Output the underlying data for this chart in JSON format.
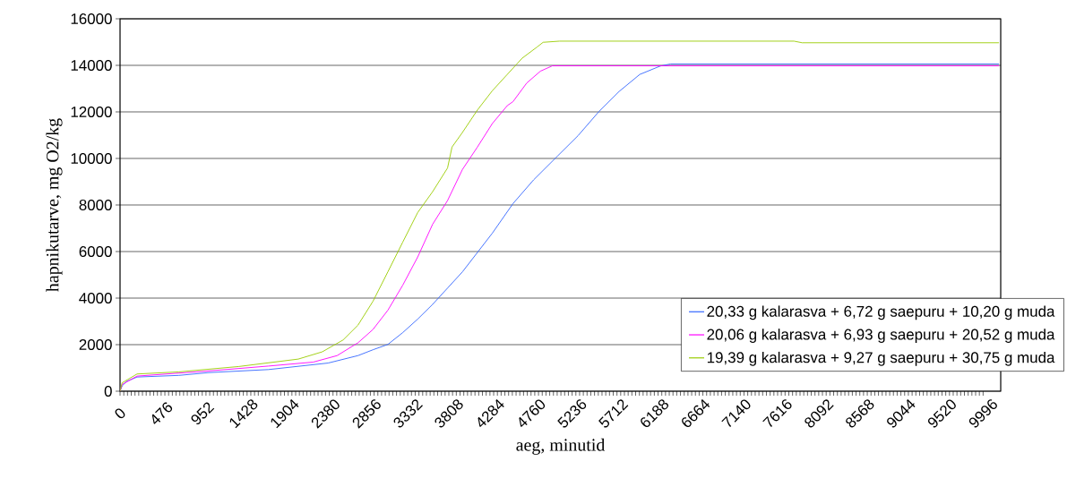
{
  "chart_data": {
    "type": "line",
    "xlabel": "aeg, minutid",
    "ylabel": "hapnikutarve, mg O2/kg",
    "xlim": [
      0,
      10200
    ],
    "xticks": [
      0,
      476,
      952,
      1428,
      1904,
      2380,
      2856,
      3332,
      3808,
      4284,
      4760,
      5236,
      5712,
      6188,
      6664,
      7140,
      7616,
      8092,
      8568,
      9044,
      9520,
      9996
    ],
    "ylim": [
      0,
      16000
    ],
    "yticks": [
      0,
      2000,
      4000,
      6000,
      8000,
      10000,
      12000,
      14000,
      16000
    ],
    "grid": "y",
    "legend": "bottom right",
    "series": [
      {
        "name": "20,33 g kalarasva + 6,72 g saepuru + 10,20 g muda",
        "color": "#3366ff",
        "x": [
          0,
          24,
          76,
          197,
          681,
          1027,
          1719,
          2410,
          2756,
          2929,
          3102,
          3275,
          3448,
          3620,
          3793,
          3966,
          4139,
          4312,
          4551,
          4790,
          5066,
          5305,
          5543,
          5781,
          6020,
          6257,
          6376,
          8000,
          10180
        ],
        "values": [
          0,
          230,
          420,
          610,
          680,
          800,
          930,
          1210,
          1530,
          1780,
          2010,
          2520,
          3100,
          3730,
          4430,
          5130,
          5960,
          6790,
          8060,
          9080,
          10100,
          10980,
          12000,
          12880,
          13610,
          13970,
          14060,
          14060,
          14060
        ]
      },
      {
        "name": "20,06 g kalarasva + 6,93 g saepuru + 20,52 g muda",
        "color": "#ff00ff",
        "x": [
          0,
          24,
          197,
          1027,
          1719,
          2237,
          2514,
          2756,
          2929,
          3102,
          3275,
          3448,
          3620,
          3793,
          3966,
          4139,
          4312,
          4485,
          4551,
          4710,
          4869,
          5007,
          7500,
          10180
        ],
        "values": [
          0,
          290,
          650,
          870,
          1080,
          1250,
          1530,
          2080,
          2650,
          3480,
          4560,
          5770,
          7170,
          8190,
          9530,
          10490,
          11500,
          12270,
          12440,
          13240,
          13750,
          13980,
          13980,
          13980
        ]
      },
      {
        "name": "19,39 g kalarasva + 9,27 g saepuru + 30,75 g muda",
        "color": "#99cc00",
        "x": [
          0,
          24,
          197,
          681,
          1373,
          2064,
          2341,
          2583,
          2756,
          2929,
          3102,
          3275,
          3448,
          3620,
          3793,
          3845,
          3966,
          4139,
          4312,
          4485,
          4658,
          4831,
          4900,
          5090,
          7806,
          7900,
          10180
        ],
        "values": [
          0,
          360,
          740,
          830,
          1060,
          1380,
          1690,
          2200,
          2840,
          3860,
          5130,
          6410,
          7680,
          8570,
          9590,
          10490,
          11120,
          12080,
          12910,
          13610,
          14310,
          14790,
          14990,
          15040,
          15040,
          14970,
          14970
        ]
      }
    ]
  }
}
